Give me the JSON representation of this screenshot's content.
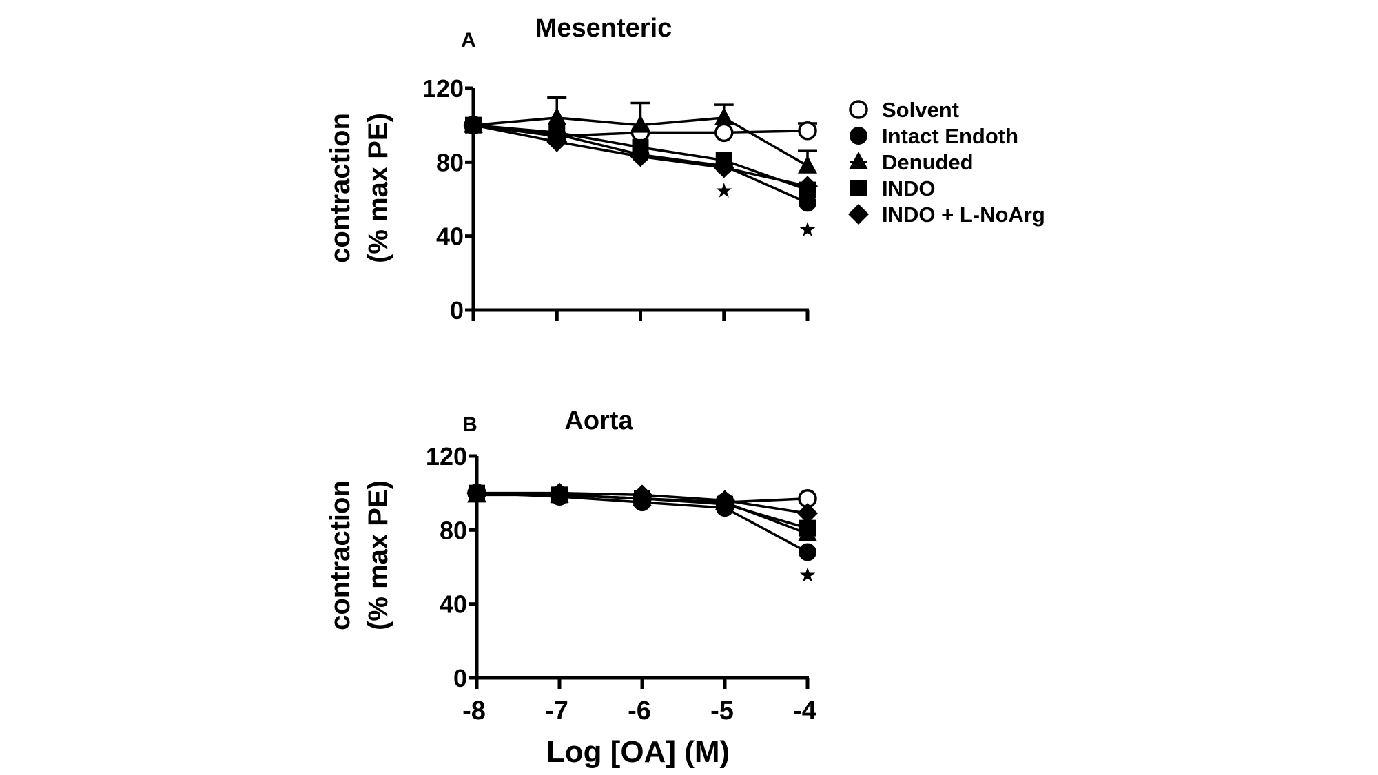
{
  "chart_data": [
    {
      "type": "line",
      "panel_label": "A",
      "title": "Mesenteric",
      "ylabel": [
        "contraction",
        "(% max PE)"
      ],
      "xlabel": "",
      "x": [
        -8,
        -7,
        -6,
        -5,
        -4
      ],
      "xlim": [
        -8,
        -4
      ],
      "ylim": [
        0,
        120
      ],
      "yticks": [
        "0",
        "40",
        "80",
        "120"
      ],
      "grid": false,
      "legend_position": "right",
      "series": [
        {
          "name": "Solvent",
          "marker": "circle-open",
          "values": [
            100,
            94,
            96,
            96,
            97
          ],
          "errors": [
            0,
            0,
            0,
            0,
            4
          ]
        },
        {
          "name": "Intact Endoth",
          "marker": "circle-filled",
          "values": [
            100,
            95,
            84,
            78,
            58
          ],
          "errors": [
            0,
            0,
            0,
            0,
            0
          ]
        },
        {
          "name": "Denuded",
          "marker": "triangle",
          "values": [
            100,
            104,
            100,
            104,
            78
          ],
          "errors": [
            0,
            11,
            12,
            7,
            8
          ]
        },
        {
          "name": "INDO",
          "marker": "square",
          "values": [
            100,
            96,
            88,
            81,
            65
          ],
          "errors": [
            0,
            0,
            0,
            0,
            0
          ]
        },
        {
          "name": "INDO + L-NoArg",
          "marker": "diamond",
          "values": [
            100,
            91,
            83,
            77,
            67
          ],
          "errors": [
            0,
            0,
            0,
            0,
            0
          ]
        }
      ],
      "annotations": [
        {
          "text": "★",
          "x": -5,
          "y": 65
        },
        {
          "text": "★",
          "x": -4,
          "y": 44
        }
      ]
    },
    {
      "type": "line",
      "panel_label": "B",
      "title": "Aorta",
      "ylabel": [
        "contraction",
        "(% max PE)"
      ],
      "xlabel": "Log [OA] (M)",
      "x": [
        -8,
        -7,
        -6,
        -5,
        -4
      ],
      "xlim": [
        -8,
        -4
      ],
      "ylim": [
        0,
        120
      ],
      "xticks": [
        "-8",
        "-7",
        "-6",
        "-5",
        "-4"
      ],
      "yticks": [
        "0",
        "40",
        "80",
        "120"
      ],
      "grid": false,
      "series": [
        {
          "name": "Solvent",
          "marker": "circle-open",
          "values": [
            100,
            99,
            97,
            95,
            97
          ],
          "errors": [
            0,
            0,
            0,
            0,
            0
          ]
        },
        {
          "name": "Intact Endoth",
          "marker": "circle-filled",
          "values": [
            100,
            98,
            95,
            92,
            68
          ],
          "errors": [
            0,
            0,
            0,
            0,
            0
          ]
        },
        {
          "name": "Denuded",
          "marker": "triangle",
          "values": [
            99,
            99,
            97,
            95,
            78
          ],
          "errors": [
            0,
            0,
            0,
            0,
            0
          ]
        },
        {
          "name": "INDO",
          "marker": "square",
          "values": [
            100,
            99,
            97,
            94,
            81
          ],
          "errors": [
            0,
            0,
            0,
            0,
            0
          ]
        },
        {
          "name": "INDO + L-NoArg",
          "marker": "diamond",
          "values": [
            100,
            100,
            99,
            96,
            89
          ],
          "errors": [
            0,
            0,
            0,
            0,
            0
          ]
        }
      ],
      "annotations": [
        {
          "text": "★",
          "x": -4,
          "y": 56
        }
      ]
    }
  ]
}
